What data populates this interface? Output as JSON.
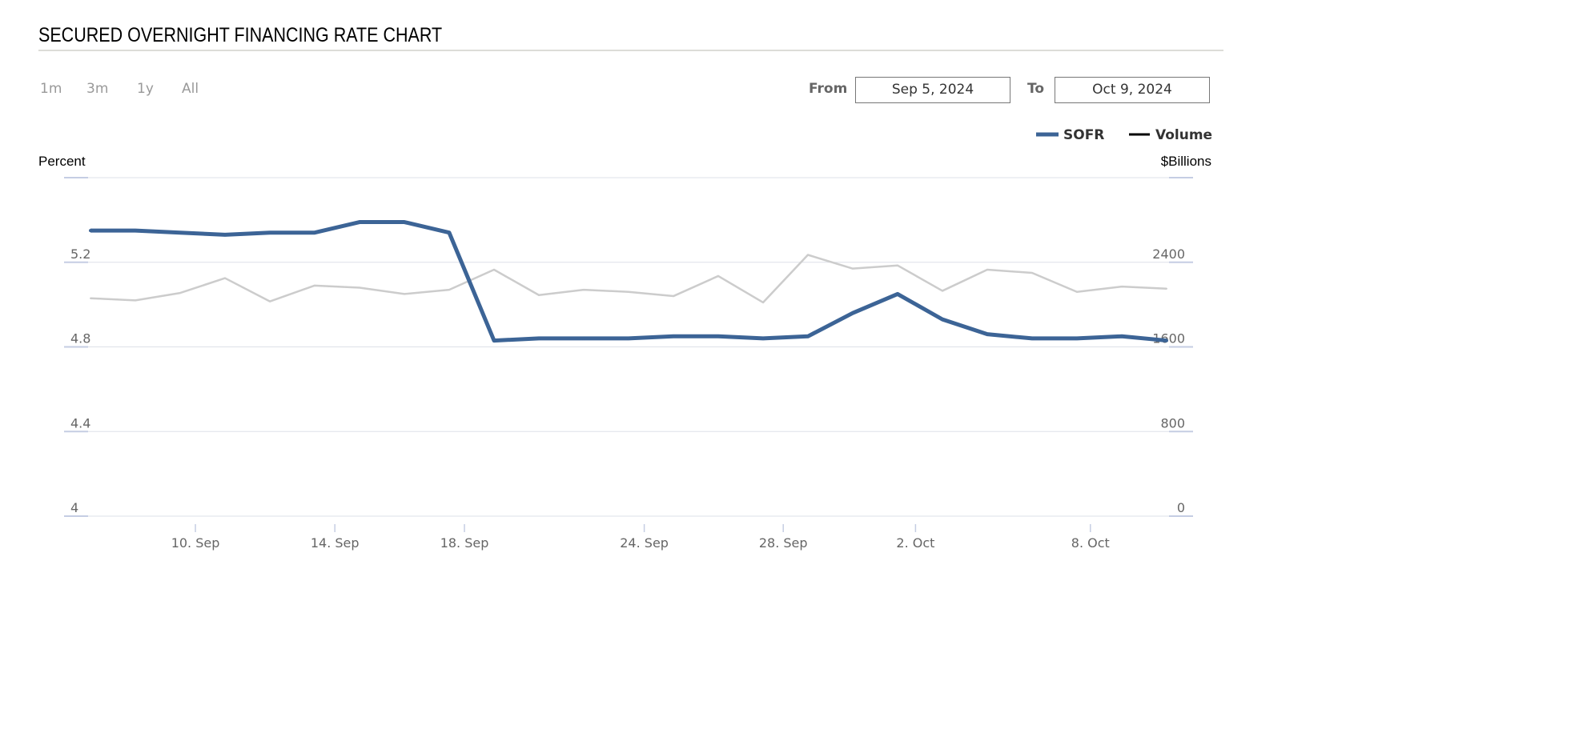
{
  "header": {
    "title": "SECURED OVERNIGHT FINANCING RATE CHART"
  },
  "range_buttons": [
    {
      "label": "1m"
    },
    {
      "label": "3m"
    },
    {
      "label": "1y"
    },
    {
      "label": "All"
    }
  ],
  "date_range": {
    "from_label": "From",
    "from_value": "Sep 5, 2024",
    "to_label": "To",
    "to_value": "Oct 9, 2024"
  },
  "colors": {
    "sofr": "#3c6496",
    "volume": "#cccccc",
    "grid": "#dde0e8",
    "axis_tick": "#c5cde3"
  },
  "chart_data": {
    "type": "line",
    "title": "SECURED OVERNIGHT FINANCING RATE CHART",
    "ylabel": "Percent",
    "y2label": "$Billions",
    "ylim": [
      4,
      5.6
    ],
    "y2lim": [
      0,
      3200
    ],
    "yticks": [
      "4",
      "4.4",
      "4.8",
      "5.2"
    ],
    "y2ticks": [
      "0",
      "800",
      "1600",
      "2400"
    ],
    "grid": true,
    "legend": {
      "placement": "top-right",
      "entries": [
        "SOFR",
        "Volume"
      ]
    },
    "x": [
      "Sep 5",
      "Sep 6",
      "Sep 9",
      "Sep 10",
      "Sep 11",
      "Sep 12",
      "Sep 13",
      "Sep 16",
      "Sep 17",
      "Sep 18",
      "Sep 19",
      "Sep 20",
      "Sep 23",
      "Sep 24",
      "Sep 25",
      "Sep 26",
      "Sep 27",
      "Sep 30",
      "Oct 1",
      "Oct 2",
      "Oct 3",
      "Oct 4",
      "Oct 7",
      "Oct 8",
      "Oct 9"
    ],
    "xticks": [
      {
        "label": "10. Sep",
        "index": 2.34
      },
      {
        "label": "14. Sep",
        "index": 5.45
      },
      {
        "label": "18. Sep",
        "index": 8.34
      },
      {
        "label": "24. Sep",
        "index": 12.35
      },
      {
        "label": "28. Sep",
        "index": 15.45
      },
      {
        "label": "2. Oct",
        "index": 18.4
      },
      {
        "label": "8. Oct",
        "index": 22.3
      }
    ],
    "series": [
      {
        "name": "SOFR",
        "axis": "left",
        "values": [
          5.35,
          5.35,
          5.34,
          5.33,
          5.34,
          5.34,
          5.39,
          5.39,
          5.34,
          4.83,
          4.84,
          4.84,
          4.84,
          4.85,
          4.85,
          4.84,
          4.85,
          4.96,
          5.05,
          4.93,
          4.86,
          4.84,
          4.84,
          4.85,
          4.83
        ]
      },
      {
        "name": "Volume",
        "axis": "right",
        "values": [
          2060,
          2040,
          2110,
          2250,
          2030,
          2180,
          2160,
          2100,
          2140,
          2330,
          2090,
          2140,
          2120,
          2080,
          2270,
          2020,
          2470,
          2340,
          2370,
          2130,
          2330,
          2300,
          2120,
          2170,
          2150
        ]
      }
    ]
  }
}
